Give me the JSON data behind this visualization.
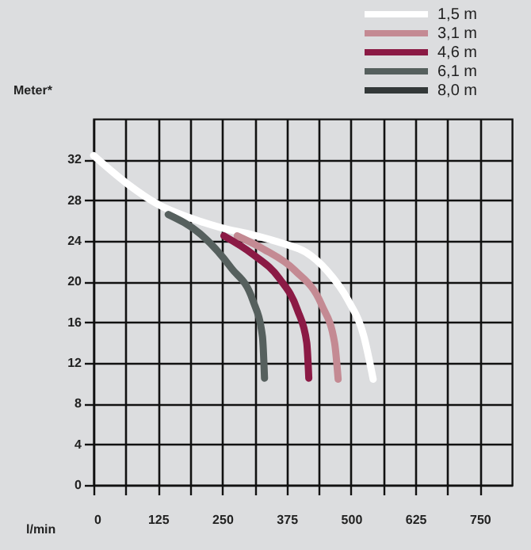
{
  "chart_data": {
    "type": "line",
    "xlabel": "l/min",
    "ylabel": "Meter*",
    "xlim": [
      0,
      812.5
    ],
    "ylim": [
      0,
      36
    ],
    "xticks": [
      0,
      {
        "value": 62.5,
        "label": null
      },
      125,
      {
        "value": 187.5,
        "label": null
      },
      250,
      {
        "value": 312.5,
        "label": null
      },
      375,
      {
        "value": 437.5,
        "label": null
      },
      500,
      {
        "value": 562.5,
        "label": null
      },
      625,
      {
        "value": 687.5,
        "label": null
      },
      750
    ],
    "yticks": [
      0,
      4,
      8,
      12,
      16,
      20,
      24,
      28,
      32
    ],
    "grid": true,
    "legend": "top right",
    "series": [
      {
        "name": "1,5 m",
        "color": "#ffffff",
        "x": [
          0,
          63.5,
          125,
          186,
          248,
          309,
          371,
          412,
          453,
          494,
          525,
          543
        ],
        "values": [
          32.4,
          29.7,
          27.6,
          26.3,
          25.3,
          24.6,
          23.7,
          22.9,
          21.1,
          18.2,
          14.6,
          10.4
        ]
      },
      {
        "name": "3,1 m",
        "color": "#c48a93",
        "x": [
          279,
          330,
          391,
          443,
          468,
          475
        ],
        "values": [
          24.5,
          23.2,
          21.1,
          17.7,
          14.0,
          10.4
        ]
      },
      {
        "name": "4,6 m",
        "color": "#8b1a45",
        "x": [
          253,
          309,
          361,
          396,
          414,
          418
        ],
        "values": [
          24.5,
          22.7,
          20.3,
          17.2,
          14.0,
          10.5
        ]
      },
      {
        "name": "6,1 m",
        "color": "#56605e",
        "x": [
          145,
          207,
          268,
          309,
          328,
          332
        ],
        "values": [
          26.6,
          24.7,
          21.3,
          18.2,
          14.6,
          10.5
        ]
      },
      {
        "name": "8,0 m",
        "color": "#333838"
      }
    ]
  }
}
